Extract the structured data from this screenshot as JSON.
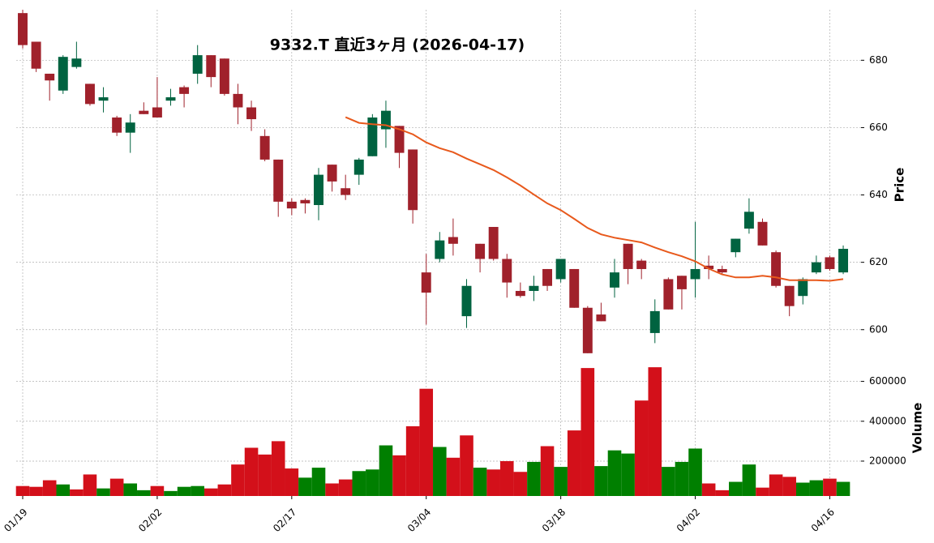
{
  "chart_data": {
    "type": "candlestick",
    "title": "9332.T  直近3ヶ月  (2026-04-17)",
    "categories": [
      "01/19",
      null,
      null,
      null,
      null,
      null,
      null,
      null,
      null,
      null,
      "02/02",
      null,
      null,
      null,
      null,
      null,
      null,
      null,
      null,
      null,
      "02/17",
      null,
      null,
      null,
      null,
      null,
      null,
      null,
      null,
      null,
      "03/04",
      null,
      null,
      null,
      null,
      null,
      null,
      null,
      null,
      null,
      "03/18",
      null,
      null,
      null,
      null,
      null,
      null,
      null,
      null,
      null,
      "04/02",
      null,
      null,
      null,
      null,
      null,
      null,
      null,
      null,
      null,
      "04/16",
      null
    ],
    "open": [
      694,
      685.5,
      676,
      671,
      678,
      673,
      668,
      663,
      658.5,
      665,
      666,
      668,
      672,
      676,
      681.5,
      680.5,
      670,
      666,
      657.5,
      650.5,
      638,
      638.5,
      637,
      649,
      642,
      646,
      651.5,
      659.5,
      660.5,
      653.5,
      617,
      621,
      627.5,
      604,
      625.5,
      630.5,
      621,
      611.5,
      611.5,
      618,
      615,
      618,
      606.5,
      604.5,
      612.5,
      625.5,
      620.5,
      599,
      615,
      616,
      615,
      619,
      618,
      623,
      630,
      632,
      623,
      613,
      610,
      617,
      621.5,
      617
    ],
    "high": [
      695,
      685.5,
      676,
      681.5,
      685.5,
      673,
      672,
      663.5,
      664,
      667.5,
      675,
      671.5,
      672.5,
      684.5,
      681.5,
      680.5,
      673,
      668,
      659.5,
      650.5,
      639,
      639,
      648,
      649,
      646,
      651,
      664,
      668,
      660.5,
      653.5,
      622.5,
      629,
      633,
      615,
      625.5,
      630.5,
      622.5,
      614,
      616,
      618,
      621,
      618,
      607,
      608,
      621,
      625.5,
      621,
      609,
      615.5,
      616,
      632,
      622,
      619,
      627,
      639,
      633,
      623.5,
      613,
      615.5,
      622,
      622,
      625
    ],
    "low": [
      683.5,
      676.5,
      668,
      670,
      677.5,
      666.5,
      664.5,
      657.5,
      652.5,
      664,
      663,
      666.5,
      666,
      673,
      672,
      669.5,
      661,
      659,
      650,
      633.5,
      634,
      634.5,
      632.5,
      641,
      638.5,
      643,
      651.5,
      654,
      648,
      631.5,
      601.5,
      620,
      622,
      600.5,
      617,
      620.5,
      609.5,
      609.5,
      608.5,
      611.5,
      614,
      606.5,
      593,
      602.5,
      609.5,
      613.5,
      615,
      596,
      606,
      606,
      609.5,
      615,
      616.5,
      621.5,
      628.5,
      625,
      612.5,
      604,
      607.5,
      616.5,
      617.5,
      616.5
    ],
    "close": [
      684.5,
      677.5,
      674,
      681,
      680.5,
      667,
      669,
      658.5,
      661.5,
      664,
      663,
      669,
      670,
      681.5,
      675,
      670,
      666,
      662.5,
      650.5,
      638,
      636,
      637.5,
      646,
      644,
      640,
      650.5,
      663,
      665,
      652.5,
      635.5,
      611,
      626.5,
      625.5,
      613,
      621,
      621,
      614,
      610,
      613,
      613,
      621,
      606.5,
      593,
      602.5,
      617,
      618,
      618,
      605.5,
      606,
      612,
      618,
      618,
      617,
      627,
      635,
      625,
      613,
      607,
      615,
      620,
      618,
      624
    ],
    "up_color": "#006340",
    "down_color": "#a0212b",
    "ylim": [
      592,
      695
    ],
    "yticks": [
      600,
      620,
      640,
      660,
      680
    ],
    "ylabel": "Price",
    "grid": true,
    "ma": {
      "color": "#e8591c",
      "values": [
        null,
        null,
        null,
        null,
        null,
        null,
        null,
        null,
        null,
        null,
        null,
        null,
        null,
        null,
        null,
        null,
        null,
        null,
        null,
        null,
        null,
        null,
        null,
        null,
        663.1,
        661.4,
        661,
        660.7,
        659.5,
        658,
        655.6,
        653.9,
        652.7,
        650.8,
        649.1,
        647.4,
        645.2,
        642.8,
        640.1,
        637.5,
        635.5,
        632.9,
        630.2,
        628.3,
        627.3,
        626.6,
        625.9,
        624.4,
        623,
        621.8,
        620.3,
        618.1,
        616.4,
        615.5,
        615.5,
        616,
        615.5,
        614.7,
        614.7,
        614.7,
        614.5,
        615
      ]
    },
    "volume": {
      "values": [
        75000,
        71000,
        104000,
        83000,
        58000,
        133000,
        63000,
        112000,
        88000,
        54000,
        75000,
        50000,
        71000,
        75000,
        63000,
        83000,
        183000,
        267000,
        233000,
        300000,
        163000,
        117000,
        167000,
        88000,
        108000,
        150000,
        158000,
        279000,
        229000,
        375000,
        563000,
        271000,
        217000,
        329000,
        167000,
        158000,
        200000,
        146000,
        196000,
        275000,
        171000,
        354000,
        667000,
        175000,
        254000,
        238000,
        504000,
        671000,
        171000,
        196000,
        263000,
        88000,
        54000,
        96000,
        183000,
        67000,
        133000,
        121000,
        92000,
        104000,
        112000,
        96000
      ],
      "colors": [
        "#d3101a",
        "#d3101a",
        "#d3101a",
        "#007f00",
        "#d3101a",
        "#d3101a",
        "#007f00",
        "#d3101a",
        "#007f00",
        "#007f00",
        "#d3101a",
        "#007f00",
        "#007f00",
        "#007f00",
        "#d3101a",
        "#d3101a",
        "#d3101a",
        "#d3101a",
        "#d3101a",
        "#d3101a",
        "#d3101a",
        "#007f00",
        "#007f00",
        "#d3101a",
        "#d3101a",
        "#007f00",
        "#007f00",
        "#007f00",
        "#d3101a",
        "#d3101a",
        "#d3101a",
        "#007f00",
        "#d3101a",
        "#d3101a",
        "#007f00",
        "#d3101a",
        "#d3101a",
        "#d3101a",
        "#007f00",
        "#d3101a",
        "#007f00",
        "#d3101a",
        "#d3101a",
        "#007f00",
        "#007f00",
        "#007f00",
        "#d3101a",
        "#d3101a",
        "#007f00",
        "#007f00",
        "#007f00",
        "#d3101a",
        "#d3101a",
        "#007f00",
        "#007f00",
        "#d3101a",
        "#d3101a",
        "#d3101a",
        "#007f00",
        "#007f00",
        "#d3101a",
        "#007f00"
      ],
      "ylim": [
        25000,
        700000
      ],
      "yticks": [
        200000,
        400000,
        600000
      ],
      "ylabel": "Volume"
    }
  }
}
